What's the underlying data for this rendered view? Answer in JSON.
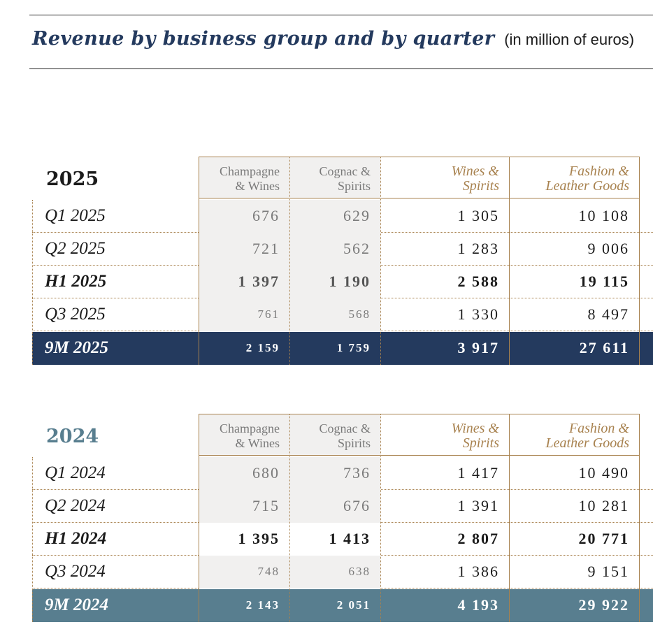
{
  "title": {
    "main": "Revenue by business group and by quarter",
    "unit": "(in million of euros)"
  },
  "columns": {
    "champagne": [
      "Champagne",
      "& Wines"
    ],
    "cognac": [
      "Cognac &",
      "Spirits"
    ],
    "wines_spirits": [
      "Wines &",
      "Spirits"
    ],
    "fashion": [
      "Fashion &",
      "Leather Goods"
    ]
  },
  "colors": {
    "accent_gold": "#a8824f",
    "navy": "#243a5e",
    "steel_blue": "#587e8f",
    "grey_fill": "#f1f0ef"
  },
  "tables": [
    {
      "year": "2025",
      "rows": [
        {
          "label": "Q1 2025",
          "champagne": "676",
          "cognac": "629",
          "wines_spirits": "1 305",
          "fashion": "10 108"
        },
        {
          "label": "Q2 2025",
          "champagne": "721",
          "cognac": "562",
          "wines_spirits": "1 283",
          "fashion": "9 006"
        },
        {
          "label": "H1 2025",
          "champagne": "1 397",
          "cognac": "1 190",
          "wines_spirits": "2 588",
          "fashion": "19 115"
        },
        {
          "label": "Q3 2025",
          "champagne": "761",
          "cognac": "568",
          "wines_spirits": "1 330",
          "fashion": "8 497"
        },
        {
          "label": "9M 2025",
          "champagne": "2 159",
          "cognac": "1 759",
          "wines_spirits": "3 917",
          "fashion": "27 611"
        }
      ]
    },
    {
      "year": "2024",
      "rows": [
        {
          "label": "Q1 2024",
          "champagne": "680",
          "cognac": "736",
          "wines_spirits": "1 417",
          "fashion": "10 490"
        },
        {
          "label": "Q2 2024",
          "champagne": "715",
          "cognac": "676",
          "wines_spirits": "1 391",
          "fashion": "10 281"
        },
        {
          "label": "H1 2024",
          "champagne": "1 395",
          "cognac": "1 413",
          "wines_spirits": "2 807",
          "fashion": "20 771"
        },
        {
          "label": "Q3 2024",
          "champagne": "748",
          "cognac": "638",
          "wines_spirits": "1 386",
          "fashion": "9 151"
        },
        {
          "label": "9M 2024",
          "champagne": "2 143",
          "cognac": "2 051",
          "wines_spirits": "4 193",
          "fashion": "29 922"
        }
      ]
    }
  ]
}
